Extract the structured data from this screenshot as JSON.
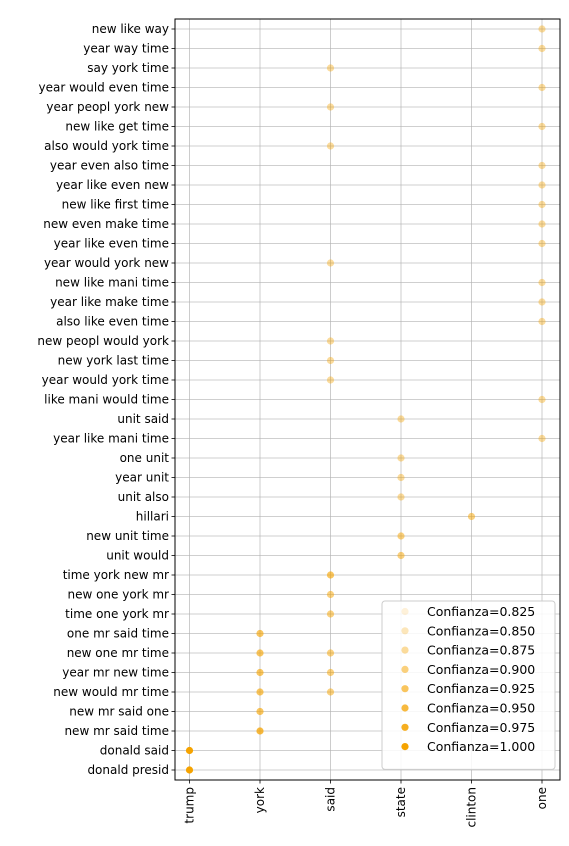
{
  "chart_data": {
    "type": "scatter",
    "x_categories": [
      "trump",
      "york",
      "said",
      "state",
      "clinton",
      "one"
    ],
    "y_categories": [
      "donald presid",
      "donald said",
      "new mr said time",
      "new mr said one",
      "new would mr time",
      "year mr new time",
      "new one mr time",
      "one mr said time",
      "time one york mr",
      "new one york mr",
      "time york new mr",
      "unit would",
      "new unit time",
      "hillari",
      "unit also",
      "year unit",
      "one unit",
      "year like mani time",
      "unit said",
      "like mani would time",
      "year would york time",
      "new york last time",
      "new peopl would york",
      "also like even time",
      "year like make time",
      "new like mani time",
      "year would york new",
      "year like even time",
      "new even make time",
      "new like first time",
      "year like even new",
      "year even also time",
      "also would york time",
      "new like get time",
      "year peopl york new",
      "year would even time",
      "say york time",
      "year way time",
      "new like way"
    ],
    "points": [
      {
        "x": "trump",
        "y": "donald presid",
        "confianza": 1.0
      },
      {
        "x": "trump",
        "y": "donald said",
        "confianza": 1.0
      },
      {
        "x": "york",
        "y": "new mr said time",
        "confianza": 0.95
      },
      {
        "x": "york",
        "y": "new mr said one",
        "confianza": 0.925
      },
      {
        "x": "york",
        "y": "new would mr time",
        "confianza": 0.925
      },
      {
        "x": "said",
        "y": "new would mr time",
        "confianza": 0.9
      },
      {
        "x": "york",
        "y": "year mr new time",
        "confianza": 0.925
      },
      {
        "x": "said",
        "y": "year mr new time",
        "confianza": 0.9
      },
      {
        "x": "york",
        "y": "new one mr time",
        "confianza": 0.925
      },
      {
        "x": "said",
        "y": "new one mr time",
        "confianza": 0.9
      },
      {
        "x": "york",
        "y": "one mr said time",
        "confianza": 0.925
      },
      {
        "x": "said",
        "y": "time one york mr",
        "confianza": 0.9
      },
      {
        "x": "said",
        "y": "new one york mr",
        "confianza": 0.9
      },
      {
        "x": "said",
        "y": "time york new mr",
        "confianza": 0.925
      },
      {
        "x": "state",
        "y": "unit would",
        "confianza": 0.9
      },
      {
        "x": "state",
        "y": "new unit time",
        "confianza": 0.9
      },
      {
        "x": "clinton",
        "y": "hillari",
        "confianza": 0.9
      },
      {
        "x": "state",
        "y": "unit also",
        "confianza": 0.875
      },
      {
        "x": "state",
        "y": "year unit",
        "confianza": 0.875
      },
      {
        "x": "state",
        "y": "one unit",
        "confianza": 0.875
      },
      {
        "x": "one",
        "y": "year like mani time",
        "confianza": 0.875
      },
      {
        "x": "state",
        "y": "unit said",
        "confianza": 0.875
      },
      {
        "x": "one",
        "y": "like mani would time",
        "confianza": 0.875
      },
      {
        "x": "said",
        "y": "year would york time",
        "confianza": 0.875
      },
      {
        "x": "said",
        "y": "new york last time",
        "confianza": 0.875
      },
      {
        "x": "said",
        "y": "new peopl would york",
        "confianza": 0.875
      },
      {
        "x": "one",
        "y": "also like even time",
        "confianza": 0.875
      },
      {
        "x": "one",
        "y": "year like make time",
        "confianza": 0.875
      },
      {
        "x": "one",
        "y": "new like mani time",
        "confianza": 0.875
      },
      {
        "x": "said",
        "y": "year would york new",
        "confianza": 0.875
      },
      {
        "x": "one",
        "y": "year like even time",
        "confianza": 0.875
      },
      {
        "x": "one",
        "y": "new even make time",
        "confianza": 0.875
      },
      {
        "x": "one",
        "y": "new like first time",
        "confianza": 0.875
      },
      {
        "x": "one",
        "y": "year like even new",
        "confianza": 0.875
      },
      {
        "x": "one",
        "y": "year even also time",
        "confianza": 0.875
      },
      {
        "x": "said",
        "y": "also would york time",
        "confianza": 0.875
      },
      {
        "x": "one",
        "y": "new like get time",
        "confianza": 0.875
      },
      {
        "x": "said",
        "y": "year peopl york new",
        "confianza": 0.875
      },
      {
        "x": "one",
        "y": "year would even time",
        "confianza": 0.875
      },
      {
        "x": "said",
        "y": "say york time",
        "confianza": 0.875
      },
      {
        "x": "one",
        "y": "year way time",
        "confianza": 0.875
      },
      {
        "x": "one",
        "y": "new like way",
        "confianza": 0.875
      }
    ],
    "legend": [
      {
        "label": "Confianza=0.825",
        "confianza": 0.825
      },
      {
        "label": "Confianza=0.850",
        "confianza": 0.85
      },
      {
        "label": "Confianza=0.875",
        "confianza": 0.875
      },
      {
        "label": "Confianza=0.900",
        "confianza": 0.9
      },
      {
        "label": "Confianza=0.925",
        "confianza": 0.925
      },
      {
        "label": "Confianza=0.950",
        "confianza": 0.95
      },
      {
        "label": "Confianza=0.975",
        "confianza": 0.975
      },
      {
        "label": "Confianza=1.000",
        "confianza": 1.0
      }
    ],
    "legend_position": "lower-right",
    "marker_color": "#f5a300",
    "grid": true,
    "title": "",
    "xlabel": "",
    "ylabel": ""
  }
}
